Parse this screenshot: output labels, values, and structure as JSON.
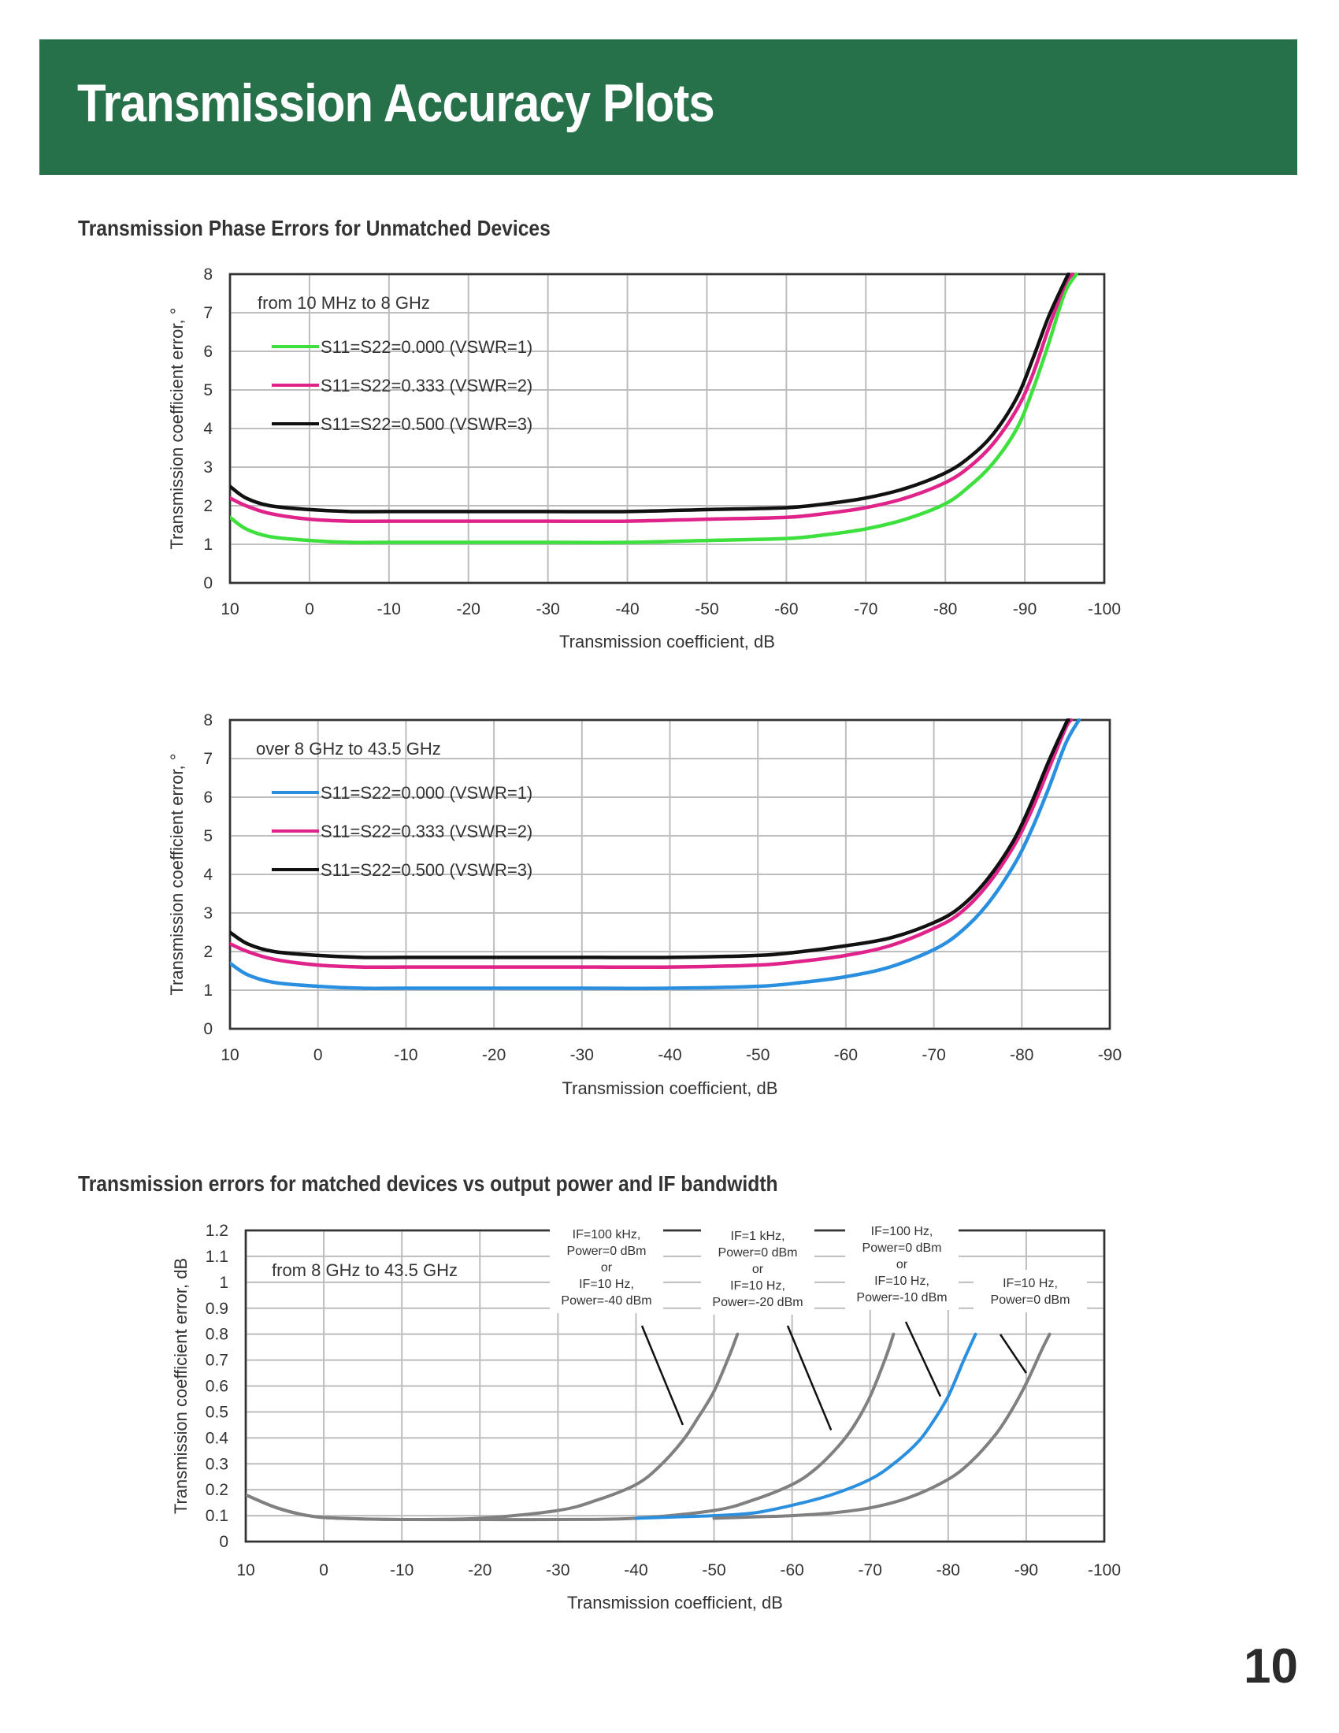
{
  "page": {
    "title": "Transmission Accuracy Plots",
    "section1_title": "Transmission Phase Errors for Unmatched Devices",
    "section2_title": "Transmission errors for matched devices vs output power and IF bandwidth",
    "page_number": "10"
  },
  "chart_data": [
    {
      "type": "line",
      "note": "from 10 MHz to 8 GHz",
      "xlabel": "Transmission coefficient, dB",
      "ylabel": "Transmission coefficient error, °",
      "xlim": [
        10,
        -100
      ],
      "ylim": [
        0,
        8
      ],
      "xticks": [
        10,
        0,
        -10,
        -20,
        -30,
        -40,
        -50,
        -60,
        -70,
        -80,
        -90,
        -100
      ],
      "yticks": [
        0,
        1,
        2,
        3,
        4,
        5,
        6,
        7,
        8
      ],
      "grid": true,
      "legend_position": "top-left",
      "series": [
        {
          "name": "S11=S22=0.000 (VSWR=1)",
          "color": "#3ee03e",
          "x": [
            10,
            8,
            5,
            0,
            -5,
            -10,
            -20,
            -30,
            -40,
            -50,
            -60,
            -65,
            -70,
            -75,
            -80,
            -83,
            -86,
            -89,
            -91,
            -93,
            -95,
            -96.5
          ],
          "y": [
            1.7,
            1.4,
            1.2,
            1.1,
            1.05,
            1.05,
            1.05,
            1.05,
            1.05,
            1.1,
            1.15,
            1.25,
            1.4,
            1.65,
            2.05,
            2.5,
            3.1,
            4.0,
            5.0,
            6.2,
            7.5,
            8.0
          ]
        },
        {
          "name": "S11=S22=0.333 (VSWR=2)",
          "color": "#e0238a",
          "x": [
            10,
            8,
            5,
            0,
            -5,
            -10,
            -20,
            -30,
            -40,
            -50,
            -60,
            -65,
            -70,
            -75,
            -80,
            -83,
            -86,
            -89,
            -91,
            -93,
            -95,
            -96
          ],
          "y": [
            2.2,
            2.0,
            1.8,
            1.65,
            1.6,
            1.6,
            1.6,
            1.6,
            1.6,
            1.65,
            1.7,
            1.8,
            1.95,
            2.2,
            2.6,
            3.0,
            3.6,
            4.5,
            5.4,
            6.6,
            7.7,
            8.0
          ]
        },
        {
          "name": "S11=S22=0.500 (VSWR=3)",
          "color": "#111111",
          "x": [
            10,
            8,
            5,
            0,
            -5,
            -10,
            -20,
            -30,
            -40,
            -50,
            -60,
            -65,
            -70,
            -75,
            -80,
            -83,
            -86,
            -89,
            -91,
            -93,
            -95,
            -95.5
          ],
          "y": [
            2.5,
            2.2,
            2.0,
            1.9,
            1.85,
            1.85,
            1.85,
            1.85,
            1.85,
            1.9,
            1.95,
            2.05,
            2.2,
            2.45,
            2.85,
            3.25,
            3.85,
            4.8,
            5.8,
            6.9,
            7.8,
            8.0
          ]
        }
      ]
    },
    {
      "type": "line",
      "note": "over 8 GHz to 43.5 GHz",
      "xlabel": "Transmission coefficient, dB",
      "ylabel": "Transmission coefficient error, °",
      "xlim": [
        10,
        -90
      ],
      "ylim": [
        0,
        8
      ],
      "xticks": [
        10,
        0,
        -10,
        -20,
        -30,
        -40,
        -50,
        -60,
        -70,
        -80,
        -90
      ],
      "yticks": [
        0,
        1,
        2,
        3,
        4,
        5,
        6,
        7,
        8
      ],
      "grid": true,
      "legend_position": "top-left",
      "series": [
        {
          "name": "S11=S22=0.000 (VSWR=1)",
          "color": "#2b8fe0",
          "x": [
            10,
            8,
            5,
            0,
            -5,
            -10,
            -20,
            -30,
            -40,
            -50,
            -55,
            -60,
            -65,
            -70,
            -73,
            -76,
            -79,
            -81,
            -83,
            -85,
            -86.5
          ],
          "y": [
            1.7,
            1.4,
            1.2,
            1.1,
            1.05,
            1.05,
            1.05,
            1.05,
            1.05,
            1.1,
            1.2,
            1.35,
            1.6,
            2.05,
            2.5,
            3.2,
            4.2,
            5.1,
            6.2,
            7.4,
            8.0
          ]
        },
        {
          "name": "S11=S22=0.333 (VSWR=2)",
          "color": "#e0238a",
          "x": [
            10,
            8,
            5,
            0,
            -5,
            -10,
            -20,
            -30,
            -40,
            -50,
            -55,
            -60,
            -65,
            -70,
            -73,
            -76,
            -79,
            -81,
            -83,
            -85,
            -85.6
          ],
          "y": [
            2.2,
            2.0,
            1.8,
            1.65,
            1.6,
            1.6,
            1.6,
            1.6,
            1.6,
            1.65,
            1.75,
            1.9,
            2.15,
            2.6,
            3.0,
            3.7,
            4.7,
            5.6,
            6.7,
            7.8,
            8.0
          ]
        },
        {
          "name": "S11=S22=0.500 (VSWR=3)",
          "color": "#111111",
          "x": [
            10,
            8,
            5,
            0,
            -5,
            -10,
            -20,
            -30,
            -40,
            -50,
            -55,
            -60,
            -65,
            -70,
            -73,
            -76,
            -79,
            -81,
            -83,
            -85,
            -85.3
          ],
          "y": [
            2.5,
            2.2,
            2.0,
            1.9,
            1.85,
            1.85,
            1.85,
            1.85,
            1.85,
            1.9,
            2.0,
            2.15,
            2.35,
            2.75,
            3.15,
            3.85,
            4.85,
            5.8,
            6.9,
            7.9,
            8.0
          ]
        }
      ]
    },
    {
      "type": "line",
      "note": "from 8 GHz to  43.5 GHz",
      "xlabel": "Transmission coefficient, dB",
      "ylabel": "Transmission coefficient error, dB",
      "xlim": [
        10,
        -100
      ],
      "ylim": [
        0,
        1.2
      ],
      "xticks": [
        10,
        0,
        -10,
        -20,
        -30,
        -40,
        -50,
        -60,
        -70,
        -80,
        -90,
        -100
      ],
      "yticks": [
        0,
        0.1,
        0.2,
        0.3,
        0.4,
        0.5,
        0.6,
        0.7,
        0.8,
        0.9,
        1,
        1.1,
        1.2
      ],
      "ytick_labels": [
        "0",
        "0.1",
        "0.2",
        "0.3",
        "0.4",
        "0.5",
        "0.6",
        "0.7",
        "0.8",
        "0.9",
        "1",
        "1.1",
        "1.2"
      ],
      "grid": true,
      "series": [
        {
          "color": "#808080",
          "x": [
            10,
            6,
            2,
            -2,
            -10,
            -20,
            -30,
            -35,
            -40,
            -43,
            -46,
            -48,
            -50,
            -52,
            -53
          ],
          "y": [
            0.18,
            0.13,
            0.1,
            0.09,
            0.085,
            0.09,
            0.12,
            0.16,
            0.22,
            0.29,
            0.39,
            0.48,
            0.58,
            0.72,
            0.8
          ]
        },
        {
          "color": "#808080",
          "x": [
            10,
            6,
            2,
            -2,
            -10,
            -20,
            -30,
            -40,
            -50,
            -55,
            -60,
            -63,
            -66,
            -68,
            -70,
            -72,
            -73
          ],
          "y": [
            0.18,
            0.13,
            0.1,
            0.09,
            0.085,
            0.085,
            0.085,
            0.09,
            0.12,
            0.16,
            0.22,
            0.28,
            0.37,
            0.45,
            0.56,
            0.71,
            0.8
          ]
        },
        {
          "color": "#2b8fe0",
          "x": [
            -40,
            -45,
            -50,
            -55,
            -60,
            -65,
            -70,
            -73,
            -76,
            -78,
            -80,
            -82,
            -83.5
          ],
          "y": [
            0.09,
            0.095,
            0.1,
            0.11,
            0.14,
            0.18,
            0.24,
            0.3,
            0.38,
            0.46,
            0.56,
            0.7,
            0.8
          ]
        },
        {
          "color": "#808080",
          "x": [
            -50,
            -55,
            -60,
            -65,
            -70,
            -75,
            -80,
            -83,
            -86,
            -88,
            -90,
            -92,
            -93
          ],
          "y": [
            0.09,
            0.095,
            0.1,
            0.11,
            0.13,
            0.17,
            0.24,
            0.31,
            0.41,
            0.5,
            0.61,
            0.74,
            0.8
          ]
        }
      ],
      "annotations": [
        {
          "lines": [
            "IF=100 kHz,",
            "Power=0 dBm",
            "or",
            "IF=10 Hz,",
            "Power=-40 dBm"
          ],
          "points_to": [
            -46,
            0.45
          ]
        },
        {
          "lines": [
            "IF=1 kHz,",
            "Power=0 dBm",
            "or",
            "IF=10 Hz,",
            "Power=-20 dBm"
          ],
          "points_to": [
            -65,
            0.43
          ]
        },
        {
          "lines": [
            "IF=100 Hz,",
            "Power=0 dBm",
            "or",
            "IF=10 Hz,",
            "Power=-10 dBm"
          ],
          "points_to": [
            -79,
            0.56
          ]
        },
        {
          "lines": [
            "IF=10 Hz,",
            "Power=0 dBm"
          ],
          "points_to": [
            -90,
            0.65
          ]
        }
      ]
    }
  ]
}
